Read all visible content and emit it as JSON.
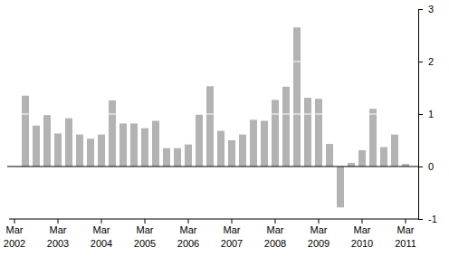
{
  "chart_data": {
    "type": "bar",
    "categories": [
      "Mar 2002",
      null,
      null,
      null,
      "Mar 2003",
      null,
      null,
      null,
      "Mar 2004",
      null,
      null,
      null,
      "Mar 2005",
      null,
      null,
      null,
      "Mar 2006",
      null,
      null,
      null,
      "Mar 2007",
      null,
      null,
      null,
      "Mar 2008",
      null,
      null,
      null,
      "Mar 2009",
      null,
      null,
      null,
      "Mar 2010",
      null,
      null,
      null,
      "Mar 2011"
    ],
    "values": [
      null,
      1.35,
      0.78,
      0.98,
      0.63,
      0.92,
      0.61,
      0.53,
      0.61,
      1.26,
      0.82,
      0.82,
      0.73,
      0.87,
      0.35,
      0.35,
      0.42,
      0.99,
      1.53,
      0.68,
      0.5,
      0.61,
      0.89,
      0.87,
      1.27,
      1.52,
      2.65,
      1.31,
      1.29,
      0.43,
      -0.78,
      0.07,
      0.31,
      1.1,
      0.37,
      0.61,
      0.05
    ],
    "color": "#b3b3b3",
    "ylim": [
      -1,
      3
    ],
    "yticks": [
      -1,
      0,
      1,
      2,
      3
    ],
    "grid": true
  }
}
